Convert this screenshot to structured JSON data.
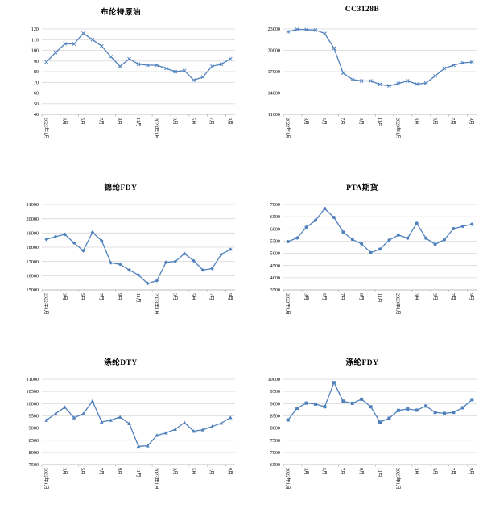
{
  "colors": {
    "line": "#4F81BD",
    "gridline": "#D9D9D9",
    "axis": "#A6A6A6",
    "text": "#000000",
    "background": "#FFFFFF"
  },
  "chart_data": [
    {
      "type": "line",
      "title": "布伦特原油",
      "marker": "x",
      "legend": "none",
      "grid": true,
      "x_labels": [
        "2022年1月",
        "3月",
        "5月",
        "7月",
        "9月",
        "11月",
        "2023年1月",
        "3月",
        "5月",
        "7月",
        "9月"
      ],
      "label_every": 2,
      "values": [
        89,
        98,
        106,
        106,
        116,
        110,
        104,
        94,
        85,
        92,
        87,
        86,
        86,
        83,
        80,
        81,
        72,
        75,
        85,
        87,
        92
      ],
      "ylim": [
        40,
        120
      ],
      "ytick_step": 10
    },
    {
      "type": "line",
      "title": "CC3128B",
      "marker": "x",
      "legend": "none",
      "grid": true,
      "x_labels": [
        "2022年1月",
        "3月",
        "5月",
        "7月",
        "9月",
        "11月",
        "2023年1月",
        "3月",
        "5月",
        "7月",
        "9月"
      ],
      "label_every": 2,
      "values": [
        22600,
        22950,
        22900,
        22850,
        22350,
        20300,
        16800,
        15900,
        15700,
        15700,
        15200,
        15000,
        15350,
        15700,
        15250,
        15400,
        16400,
        17450,
        17900,
        18250,
        18350
      ],
      "ylim": [
        11000,
        23000
      ],
      "ytick_step": 3000
    },
    {
      "type": "line",
      "title": "锦纶FDY",
      "marker": "diamond",
      "legend": "none",
      "grid": true,
      "x_labels": [
        "2022年1月",
        "3月",
        "5月",
        "7月",
        "9月",
        "11月",
        "2023年1月",
        "3月",
        "5月",
        "7月",
        "9月"
      ],
      "label_every": 2,
      "values": [
        18550,
        18750,
        18900,
        18300,
        17750,
        19050,
        18450,
        16900,
        16800,
        16400,
        16050,
        15450,
        15650,
        16950,
        17000,
        17550,
        17050,
        16400,
        16500,
        17500,
        17850
      ],
      "ylim": [
        15000,
        21000
      ],
      "ytick_step": 1000
    },
    {
      "type": "line",
      "title": "PTA期货",
      "marker": "circle",
      "legend": "none",
      "grid": true,
      "x_labels": [
        "2022年1月",
        "3月",
        "5月",
        "7月",
        "9月",
        "11月",
        "2023年1月",
        "3月",
        "5月",
        "7月",
        "9月"
      ],
      "label_every": 2,
      "values": [
        5480,
        5630,
        6070,
        6350,
        6830,
        6470,
        5870,
        5570,
        5390,
        5030,
        5170,
        5540,
        5750,
        5620,
        6230,
        5620,
        5370,
        5560,
        6010,
        6110,
        6190
      ],
      "ylim": [
        3500,
        7000
      ],
      "ytick_step": 500
    },
    {
      "type": "line",
      "title": "涤纶DTY",
      "marker": "triangle",
      "legend": "none",
      "grid": true,
      "x_labels": [
        "2022年1月",
        "3月",
        "5月",
        "7月",
        "9月",
        "11月",
        "2023年1月",
        "3月",
        "5月",
        "7月",
        "9月"
      ],
      "label_every": 2,
      "values": [
        9320,
        9590,
        9850,
        9420,
        9580,
        10100,
        9250,
        9320,
        9450,
        9180,
        8250,
        8270,
        8700,
        8800,
        8950,
        9220,
        8870,
        8930,
        9060,
        9200,
        9430
      ],
      "ylim": [
        7500,
        11000
      ],
      "ytick_step": 500
    },
    {
      "type": "line",
      "title": "涤纶FDY",
      "marker": "square",
      "legend": "none",
      "grid": true,
      "x_labels": [
        "2022年1月",
        "3月",
        "5月",
        "7月",
        "9月",
        "11月",
        "2023年1月",
        "3月",
        "5月",
        "7月",
        "9月"
      ],
      "label_every": 2,
      "values": [
        8330,
        8810,
        9020,
        8980,
        8870,
        9860,
        9100,
        9010,
        9180,
        8870,
        8240,
        8400,
        8720,
        8780,
        8730,
        8900,
        8640,
        8600,
        8640,
        8830,
        9160
      ],
      "ylim": [
        6500,
        10000
      ],
      "ytick_step": 500
    }
  ]
}
